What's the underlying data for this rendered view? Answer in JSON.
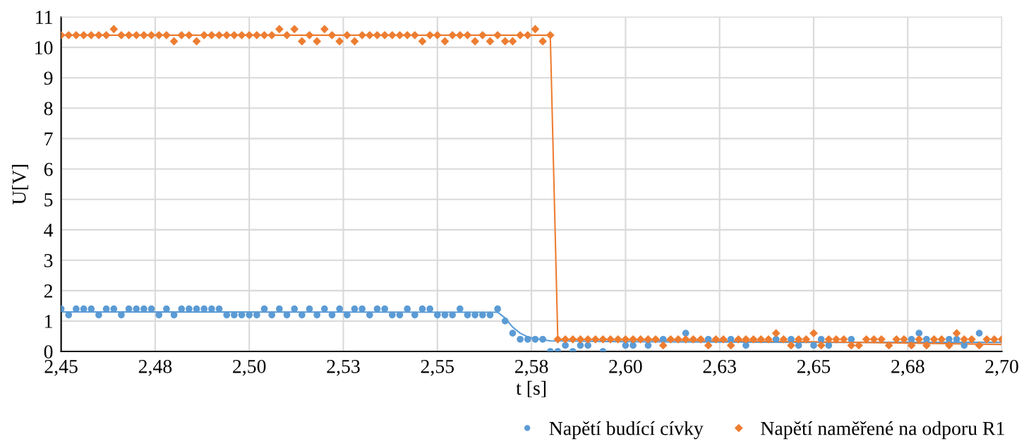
{
  "chart_data": {
    "type": "scatter",
    "xlabel": "t [s]",
    "ylabel": "U[V]",
    "xlim": [
      2.45,
      2.7
    ],
    "ylim": [
      0,
      11
    ],
    "xticks": [
      {
        "value": 2.45,
        "label": "2,45"
      },
      {
        "value": 2.475,
        "label": "2,48"
      },
      {
        "value": 2.5,
        "label": "2,50"
      },
      {
        "value": 2.525,
        "label": "2,53"
      },
      {
        "value": 2.55,
        "label": "2,55"
      },
      {
        "value": 2.575,
        "label": "2,58"
      },
      {
        "value": 2.6,
        "label": "2,60"
      },
      {
        "value": 2.625,
        "label": "2,63"
      },
      {
        "value": 2.65,
        "label": "2,65"
      },
      {
        "value": 2.675,
        "label": "2,68"
      },
      {
        "value": 2.7,
        "label": "2,70"
      }
    ],
    "yticks": [
      0,
      1,
      2,
      3,
      4,
      5,
      6,
      7,
      8,
      9,
      10,
      11
    ],
    "grid": true,
    "legend": "bottom right",
    "x": [
      2.45,
      2.452,
      2.454,
      2.456,
      2.458,
      2.46,
      2.462,
      2.464,
      2.466,
      2.468,
      2.47,
      2.472,
      2.474,
      2.476,
      2.478,
      2.48,
      2.482,
      2.484,
      2.486,
      2.488,
      2.49,
      2.492,
      2.494,
      2.496,
      2.498,
      2.5,
      2.502,
      2.504,
      2.506,
      2.508,
      2.51,
      2.512,
      2.514,
      2.516,
      2.518,
      2.52,
      2.522,
      2.524,
      2.526,
      2.528,
      2.53,
      2.532,
      2.534,
      2.536,
      2.538,
      2.54,
      2.542,
      2.544,
      2.546,
      2.548,
      2.55,
      2.552,
      2.554,
      2.556,
      2.558,
      2.56,
      2.562,
      2.564,
      2.566,
      2.568,
      2.57,
      2.572,
      2.574,
      2.576,
      2.578,
      2.58,
      2.582,
      2.584,
      2.586,
      2.588,
      2.59,
      2.592,
      2.594,
      2.596,
      2.598,
      2.6,
      2.602,
      2.604,
      2.606,
      2.608,
      2.61,
      2.612,
      2.614,
      2.616,
      2.618,
      2.62,
      2.622,
      2.624,
      2.626,
      2.628,
      2.63,
      2.632,
      2.634,
      2.636,
      2.638,
      2.64,
      2.642,
      2.644,
      2.646,
      2.648,
      2.65,
      2.652,
      2.654,
      2.656,
      2.658,
      2.66,
      2.662,
      2.664,
      2.666,
      2.668,
      2.67,
      2.672,
      2.674,
      2.676,
      2.678,
      2.68,
      2.682,
      2.684,
      2.686,
      2.688,
      2.69,
      2.692,
      2.694,
      2.696,
      2.698,
      2.7
    ],
    "series": [
      {
        "name": "Napětí budící cívky",
        "marker": "circle",
        "color": "#5b9bd5",
        "values": [
          1.4,
          1.2,
          1.4,
          1.4,
          1.4,
          1.2,
          1.4,
          1.4,
          1.2,
          1.4,
          1.4,
          1.4,
          1.4,
          1.2,
          1.4,
          1.2,
          1.4,
          1.4,
          1.4,
          1.4,
          1.4,
          1.4,
          1.2,
          1.2,
          1.2,
          1.2,
          1.2,
          1.4,
          1.2,
          1.4,
          1.2,
          1.4,
          1.2,
          1.4,
          1.2,
          1.4,
          1.2,
          1.4,
          1.2,
          1.4,
          1.4,
          1.2,
          1.4,
          1.4,
          1.2,
          1.2,
          1.4,
          1.2,
          1.4,
          1.4,
          1.2,
          1.2,
          1.2,
          1.4,
          1.2,
          1.2,
          1.2,
          1.2,
          1.4,
          1.0,
          0.6,
          0.4,
          0.4,
          0.4,
          0.4,
          0,
          0,
          0.2,
          0,
          0.2,
          0.2,
          null,
          0,
          null,
          null,
          0.2,
          0.2,
          null,
          0.2,
          null,
          0.4,
          null,
          null,
          0.6,
          null,
          null,
          0.4,
          null,
          null,
          0.4,
          null,
          0.2,
          null,
          null,
          null,
          0.4,
          null,
          0.4,
          0.2,
          null,
          0.2,
          0.4,
          0.2,
          null,
          null,
          0.4,
          null,
          null,
          null,
          null,
          null,
          null,
          null,
          0.4,
          0.6,
          0.4,
          null,
          null,
          0.4,
          0.4,
          0.2,
          null,
          0.6,
          null,
          null,
          null
        ]
      },
      {
        "name": "Napětí naměřené na odporu R1",
        "marker": "diamond",
        "color": "#ed7d31",
        "values": [
          10.4,
          10.4,
          10.4,
          10.4,
          10.4,
          10.4,
          10.4,
          10.6,
          10.4,
          10.4,
          10.4,
          10.4,
          10.4,
          10.4,
          10.4,
          10.2,
          10.4,
          10.4,
          10.2,
          10.4,
          10.4,
          10.4,
          10.4,
          10.4,
          10.4,
          10.4,
          10.4,
          10.4,
          10.4,
          10.6,
          10.4,
          10.6,
          10.2,
          10.4,
          10.2,
          10.6,
          10.4,
          10.2,
          10.4,
          10.2,
          10.4,
          10.4,
          10.4,
          10.4,
          10.4,
          10.4,
          10.4,
          10.4,
          10.2,
          10.4,
          10.4,
          10.2,
          10.4,
          10.4,
          10.4,
          10.2,
          10.4,
          10.2,
          10.4,
          10.2,
          10.2,
          10.4,
          10.4,
          10.6,
          10.2,
          10.4,
          0.4,
          0.4,
          0.4,
          0.4,
          0.4,
          0.4,
          0.4,
          0.4,
          0.4,
          0.4,
          0.4,
          0.4,
          0.4,
          0.4,
          0.2,
          0.4,
          0.4,
          0.4,
          0.4,
          0.4,
          0.2,
          0.4,
          0.4,
          0.2,
          0.4,
          0.4,
          0.4,
          0.4,
          0.4,
          0.6,
          0.4,
          0.2,
          0.4,
          0.4,
          0.6,
          0.2,
          0.4,
          0.4,
          0.4,
          0.2,
          0.2,
          0.4,
          0.4,
          0.4,
          0.2,
          0.4,
          0.4,
          0.2,
          0.4,
          0.2,
          0.4,
          0.4,
          0.2,
          0.6,
          0.4,
          0.4,
          0.2,
          0.4,
          0.4,
          0.4
        ]
      },
      {
        "type": "line",
        "marker": "none",
        "color": "#5b9bd5",
        "x": [
          2.45,
          2.566,
          2.568,
          2.57,
          2.572,
          2.574,
          2.576,
          2.58,
          2.6,
          2.65,
          2.7
        ],
        "values": [
          1.3,
          1.29,
          1.1,
          0.8,
          0.6,
          0.48,
          0.42,
          0.35,
          0.32,
          0.3,
          0.3
        ]
      },
      {
        "type": "line",
        "marker": "none",
        "color": "#ed7d31",
        "x": [
          2.45,
          2.58,
          2.582,
          2.6,
          2.65,
          2.7
        ],
        "values": [
          10.4,
          10.4,
          0.4,
          0.38,
          0.32,
          0.23
        ]
      }
    ]
  }
}
